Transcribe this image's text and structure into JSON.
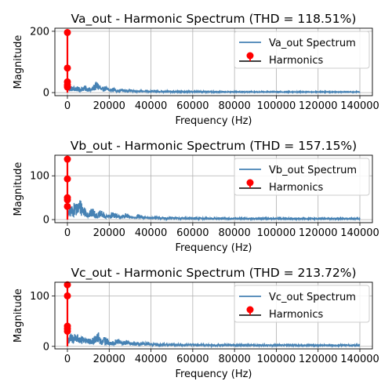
{
  "chart_data": [
    {
      "type": "line",
      "title": "Va_out - Harmonic Spectrum (THD = 118.51%)",
      "xlabel": "Frequency (Hz)",
      "ylabel": "Magnitude",
      "xlim": [
        -6000,
        146000
      ],
      "ylim": [
        -10,
        210
      ],
      "xticks": [
        0,
        20000,
        40000,
        60000,
        80000,
        100000,
        120000,
        140000
      ],
      "yticks": [
        0,
        200
      ],
      "grid": true,
      "legend_position": "top-right",
      "series": [
        {
          "name": "Va_out Spectrum",
          "color": "#4682b4",
          "kind": "spectrum",
          "x_range": [
            0,
            140000
          ],
          "peaks": [
            [
              0,
              196
            ],
            [
              4000,
              18
            ],
            [
              8000,
              22
            ],
            [
              10000,
              17
            ],
            [
              14000,
              34
            ],
            [
              18000,
              20
            ],
            [
              22000,
              15
            ],
            [
              26000,
              12
            ],
            [
              30000,
              10
            ],
            [
              34000,
              8
            ],
            [
              38000,
              7
            ],
            [
              44000,
              5
            ]
          ]
        },
        {
          "name": "Harmonics",
          "color": "#ff0000",
          "kind": "stem",
          "x": [
            0,
            0,
            0,
            0,
            0
          ],
          "y": [
            196,
            80,
            35,
            25,
            18
          ]
        }
      ]
    },
    {
      "type": "line",
      "title": "Vb_out - Harmonic Spectrum (THD = 157.15%)",
      "xlabel": "Frequency (Hz)",
      "ylabel": "Magnitude",
      "xlim": [
        -6000,
        146000
      ],
      "ylim": [
        -7,
        147
      ],
      "xticks": [
        0,
        20000,
        40000,
        60000,
        80000,
        100000,
        120000,
        140000
      ],
      "yticks": [
        0,
        100
      ],
      "grid": true,
      "legend_position": "top-right",
      "series": [
        {
          "name": "Vb_out Spectrum",
          "color": "#4682b4",
          "kind": "spectrum",
          "x_range": [
            0,
            140000
          ],
          "peaks": [
            [
              0,
              138
            ],
            [
              2000,
              30
            ],
            [
              4000,
              40
            ],
            [
              6000,
              45
            ],
            [
              8000,
              30
            ],
            [
              12000,
              25
            ],
            [
              16000,
              20
            ],
            [
              22000,
              18
            ],
            [
              28000,
              14
            ],
            [
              34000,
              12
            ],
            [
              40000,
              6
            ]
          ]
        },
        {
          "name": "Harmonics",
          "color": "#ff0000",
          "kind": "stem",
          "x": [
            0,
            0,
            0,
            0,
            0
          ],
          "y": [
            138,
            93,
            50,
            45,
            30
          ]
        }
      ]
    },
    {
      "type": "line",
      "title": "Vc_out - Harmonic Spectrum (THD = 213.72%)",
      "xlabel": "Frequency (Hz)",
      "ylabel": "Magnitude",
      "xlim": [
        -6000,
        146000
      ],
      "ylim": [
        -5,
        127
      ],
      "xticks": [
        0,
        20000,
        40000,
        60000,
        80000,
        100000,
        120000,
        140000
      ],
      "yticks": [
        0,
        100
      ],
      "grid": true,
      "legend_position": "top-right",
      "series": [
        {
          "name": "Vc_out Spectrum",
          "color": "#4682b4",
          "kind": "spectrum",
          "x_range": [
            0,
            140000
          ],
          "peaks": [
            [
              0,
              122
            ],
            [
              2000,
              25
            ],
            [
              4000,
              28
            ],
            [
              8000,
              22
            ],
            [
              14000,
              30
            ],
            [
              18000,
              18
            ],
            [
              24000,
              15
            ],
            [
              28000,
              12
            ],
            [
              38000,
              8
            ],
            [
              46000,
              6
            ]
          ]
        },
        {
          "name": "Harmonics",
          "color": "#ff0000",
          "kind": "stem",
          "x": [
            0,
            0,
            0,
            0,
            0
          ],
          "y": [
            122,
            100,
            40,
            35,
            30
          ]
        }
      ]
    }
  ]
}
